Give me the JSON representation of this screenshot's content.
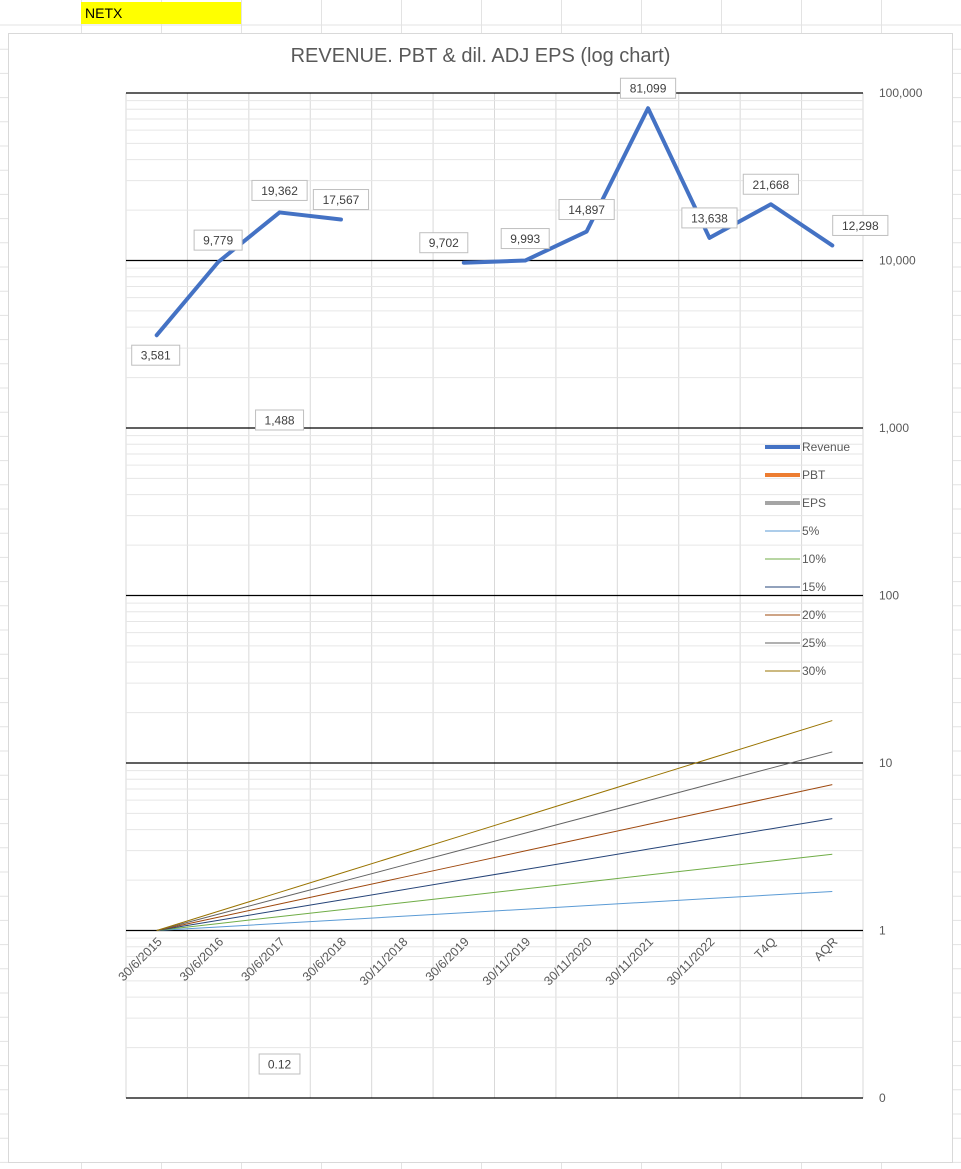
{
  "sheet": {
    "ticker": "NETX",
    "ticker_bg": "#ffff00"
  },
  "chart_data": {
    "type": "line",
    "title": "REVENUE. PBT & dil. ADJ EPS  (log chart)",
    "y_scale": "log",
    "ylim": [
      0.1,
      100000
    ],
    "y_tick_labels": [
      "0",
      "1",
      "10",
      "100",
      "1,000",
      "10,000",
      "100,000"
    ],
    "y_tick_values": [
      0.1,
      1,
      10,
      100,
      1000,
      10000,
      100000
    ],
    "y_axis_position": "right",
    "categories": [
      "30/6/2015",
      "30/6/2016",
      "30/6/2017",
      "30/6/2018",
      "30/11/2018",
      "30/6/2019",
      "30/11/2019",
      "30/11/2020",
      "30/11/2021",
      "30/11/2022",
      "T4Q",
      "AQR"
    ],
    "grid": true,
    "legend_position": "right",
    "series": [
      {
        "name": "Revenue",
        "color": "#4472c4",
        "width": 4,
        "values": [
          3581,
          9779,
          19362,
          17567,
          null,
          9702,
          9993,
          14897,
          81099,
          13638,
          21668,
          12298
        ],
        "labels": [
          "3,581",
          "9,779",
          "19,362",
          "17,567",
          "",
          "9,702",
          "9,993",
          "14,897",
          "81,099",
          "13,638",
          "21,668",
          "12,298"
        ]
      },
      {
        "name": "PBT",
        "color": "#ed7d31",
        "width": 4,
        "values": [
          null,
          null,
          1488,
          null,
          null,
          null,
          null,
          null,
          null,
          null,
          null,
          null
        ],
        "labels": [
          "",
          "",
          "1,488",
          "",
          "",
          "",
          "",
          "",
          "",
          "",
          "",
          ""
        ]
      },
      {
        "name": "EPS",
        "color": "#a5a5a5",
        "width": 4,
        "values": [
          null,
          null,
          0.12,
          null,
          null,
          null,
          null,
          null,
          null,
          null,
          null,
          null
        ],
        "labels": [
          "",
          "",
          "0.12",
          "",
          "",
          "",
          "",
          "",
          "",
          "",
          "",
          ""
        ]
      },
      {
        "name": "5%",
        "color": "#5b9bd5",
        "width": 1,
        "growth": 0.05
      },
      {
        "name": "10%",
        "color": "#70ad47",
        "width": 1,
        "growth": 0.1
      },
      {
        "name": "15%",
        "color": "#264478",
        "width": 1,
        "growth": 0.15
      },
      {
        "name": "20%",
        "color": "#9e480e",
        "width": 1,
        "growth": 0.2
      },
      {
        "name": "25%",
        "color": "#636363",
        "width": 1,
        "growth": 0.25
      },
      {
        "name": "30%",
        "color": "#997300",
        "width": 1,
        "growth": 0.3
      }
    ]
  }
}
